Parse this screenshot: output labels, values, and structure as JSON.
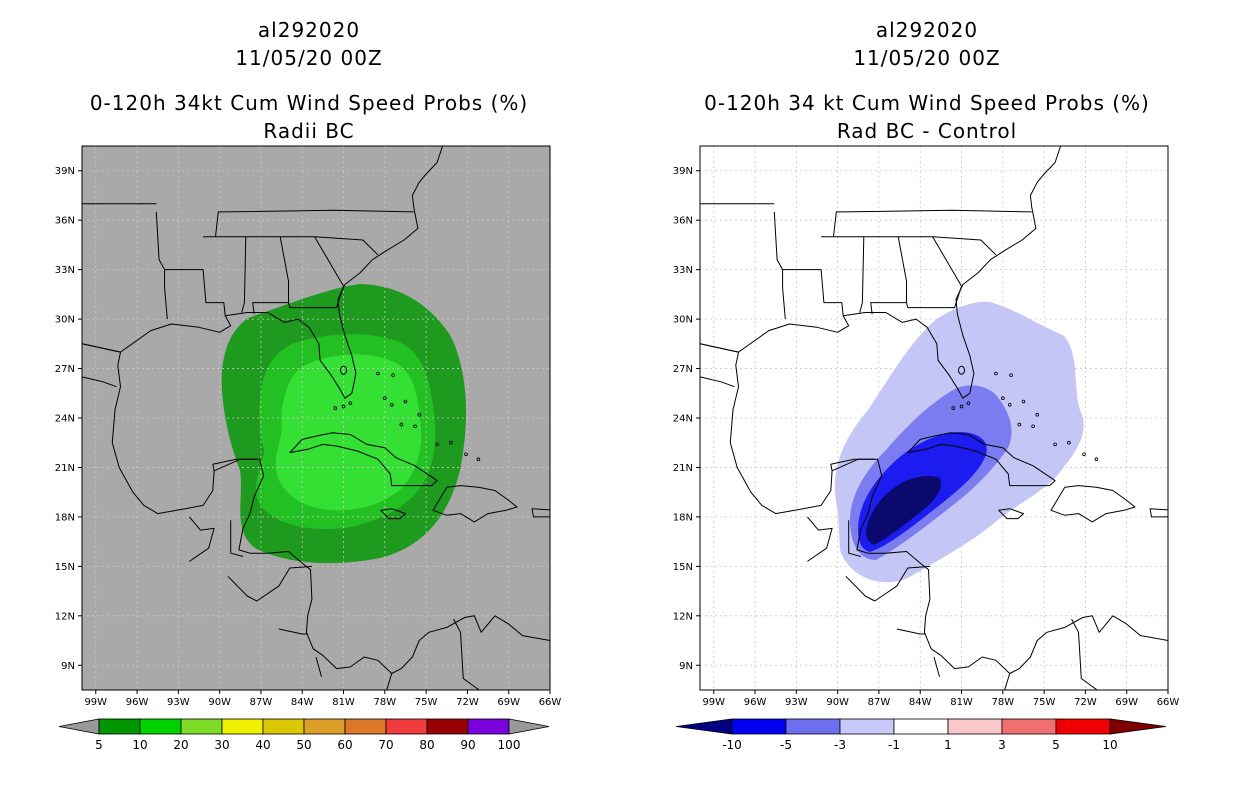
{
  "colors": {
    "map_bg_left": "#a9a9a9",
    "map_bg_right": "#ffffff",
    "green_dark": "#1e9a1e",
    "green_mid": "#22c022",
    "green_light": "#33e033",
    "blue_1": "#c4c6f6",
    "blue_2": "#7a7cef",
    "blue_3": "#1c1cf0",
    "blue_4": "#0a0a6e"
  },
  "left": {
    "title_line1": "al292020",
    "title_line2": "11/05/20 00Z",
    "title_line3": "0-120h 34kt Cum Wind Speed Probs (%)",
    "title_line4": "Radii BC",
    "colorbar": {
      "labels": [
        "5",
        "10",
        "20",
        "30",
        "40",
        "50",
        "60",
        "70",
        "80",
        "90",
        "100"
      ],
      "colors": [
        "#009600",
        "#00d200",
        "#7ddc28",
        "#f0f000",
        "#dcc800",
        "#dca028",
        "#dc7828",
        "#f03c3c",
        "#960000",
        "#7a00dc"
      ]
    }
  },
  "right": {
    "title_line1": "al292020",
    "title_line2": "11/05/20 00Z",
    "title_line3": "0-120h 34 kt Cum Wind Speed Probs (%)",
    "title_line4": "Rad BC - Control",
    "colorbar": {
      "labels": [
        "-10",
        "-5",
        "-3",
        "-1",
        "1",
        "3",
        "5",
        "10"
      ],
      "colors": [
        "#0000f0",
        "#6e6ef0",
        "#c8c8fa",
        "#ffffff",
        "#fac8c8",
        "#f07070",
        "#f00000"
      ],
      "left_arrow_color": "#000080",
      "right_arrow_color": "#800000"
    }
  },
  "axes": {
    "lat_labels": [
      "39N",
      "36N",
      "33N",
      "30N",
      "27N",
      "24N",
      "21N",
      "18N",
      "15N",
      "12N",
      "9N"
    ],
    "lon_labels": [
      "99W",
      "96W",
      "93W",
      "90W",
      "87W",
      "84W",
      "81W",
      "78W",
      "75W",
      "72W",
      "69W",
      "66W"
    ]
  }
}
